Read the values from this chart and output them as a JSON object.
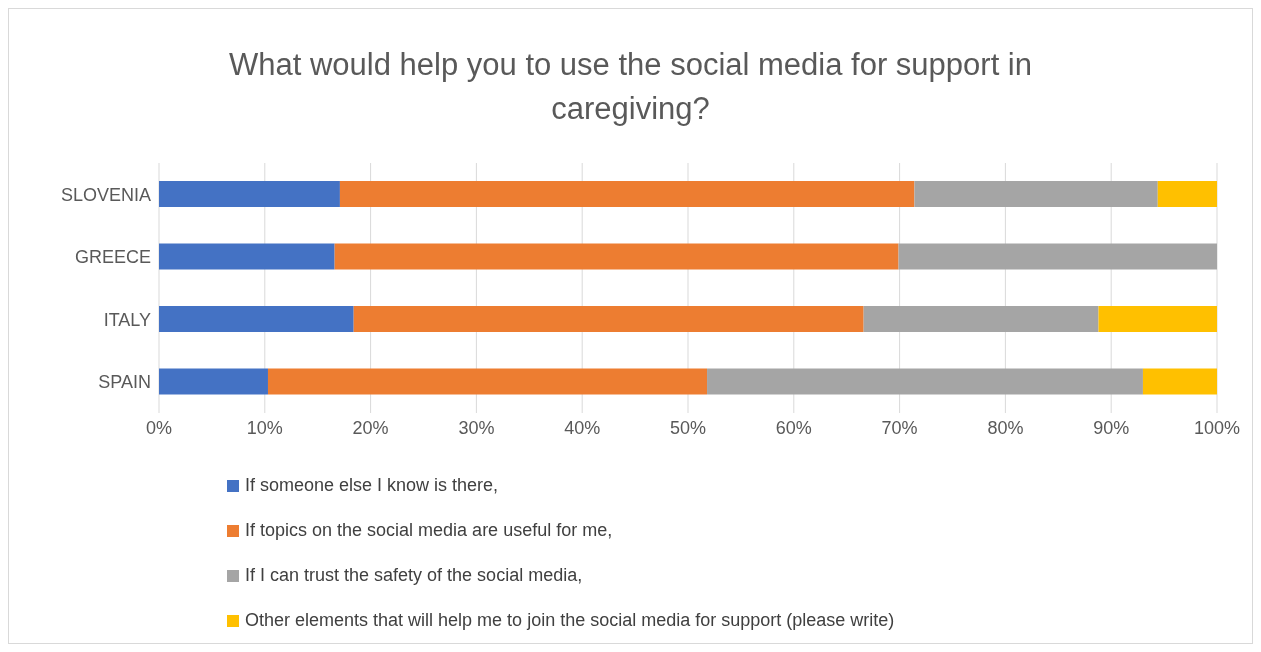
{
  "chart_data": {
    "type": "bar",
    "orientation": "horizontal",
    "stacked": true,
    "title": "What would help you to use the social media for support in caregiving?",
    "categories": [
      "SLOVENIA",
      "GREECE",
      "ITALY",
      "SPAIN"
    ],
    "series": [
      {
        "name": "If someone else I know is there,",
        "color": "#4472c4",
        "values": [
          17.1,
          16.6,
          18.4,
          10.3
        ]
      },
      {
        "name": "If topics on the social media are useful for me,",
        "color": "#ed7d31",
        "values": [
          54.3,
          53.3,
          48.2,
          41.5
        ]
      },
      {
        "name": "If I can trust the safety of the social media,",
        "color": "#a5a5a5",
        "values": [
          23.0,
          30.1,
          22.2,
          41.2
        ]
      },
      {
        "name": "Other elements that will help me to join the social media for support (please write)",
        "color": "#ffc000",
        "values": [
          5.6,
          0,
          11.2,
          7.0
        ]
      }
    ],
    "xlim": [
      0,
      100
    ],
    "xticks": [
      {
        "value": 0,
        "label": "0%"
      },
      {
        "value": 10,
        "label": "10%"
      },
      {
        "value": 20,
        "label": "20%"
      },
      {
        "value": 30,
        "label": "30%"
      },
      {
        "value": 40,
        "label": "40%"
      },
      {
        "value": 50,
        "label": "50%"
      },
      {
        "value": 60,
        "label": "60%"
      },
      {
        "value": 70,
        "label": "70%"
      },
      {
        "value": 80,
        "label": "80%"
      },
      {
        "value": 90,
        "label": "90%"
      },
      {
        "value": 100,
        "label": "100%"
      }
    ],
    "grid": "x",
    "legend": "bottom"
  }
}
